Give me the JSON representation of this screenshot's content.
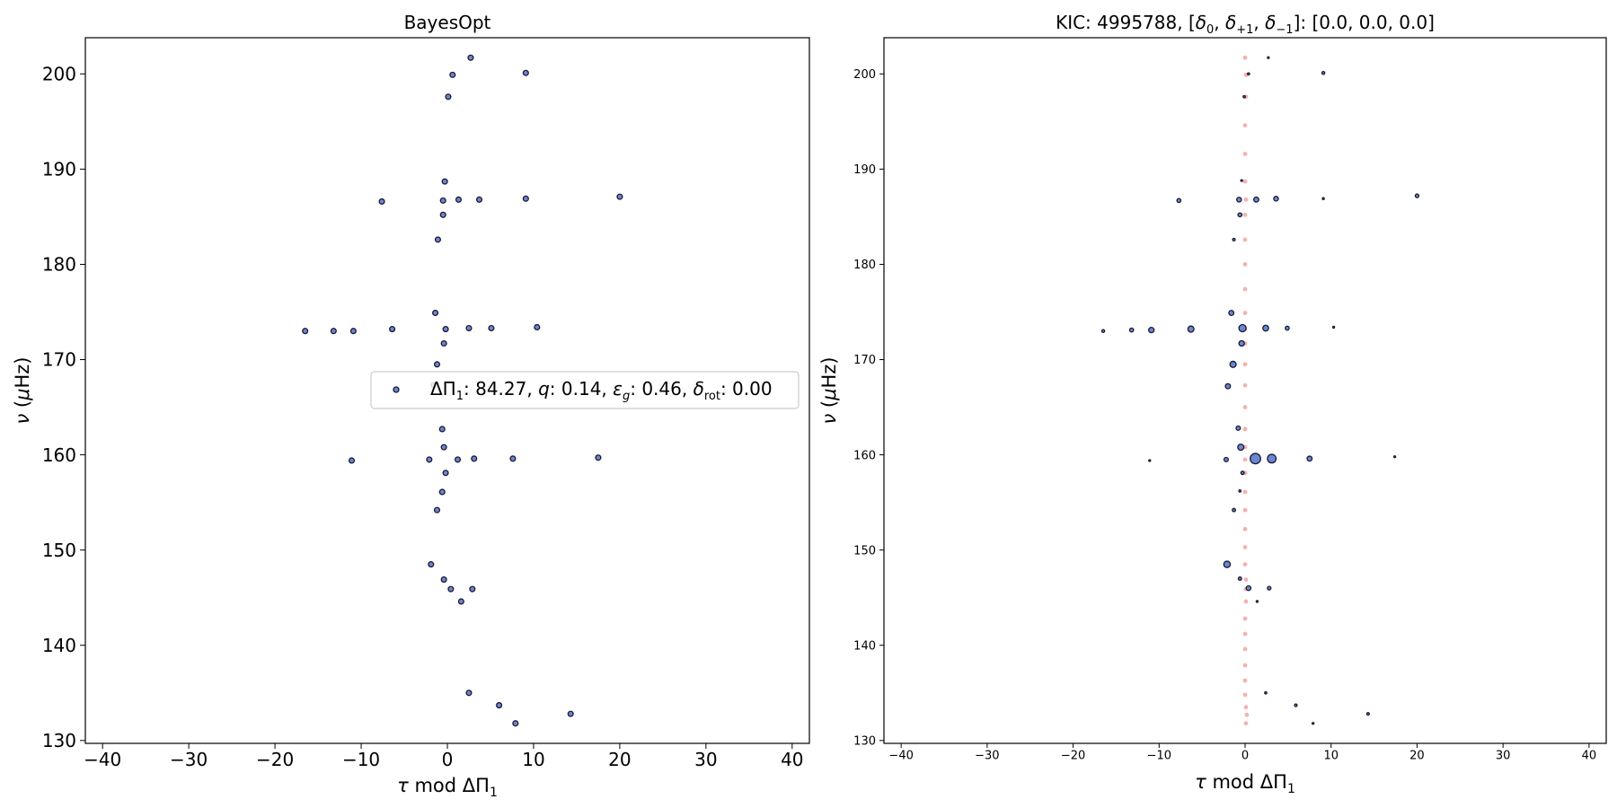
{
  "chart_data": [
    {
      "type": "scatter",
      "title": "BayesOpt",
      "xlabel": "τ mod ΔΠ₁",
      "ylabel": "ν (μHz)",
      "xlim": [
        -42,
        42
      ],
      "ylim": [
        129.7,
        203.8
      ],
      "xticks": [
        -40,
        -30,
        -20,
        -10,
        0,
        10,
        20,
        30,
        40
      ],
      "yticks": [
        130,
        140,
        150,
        160,
        170,
        180,
        190,
        200
      ],
      "grid": false,
      "legend": {
        "placement": "center-right",
        "entries": [
          {
            "label_parts": [
              "ΔΠ",
              "1",
              ": 84.27, ",
              "q",
              ": 0.14, ",
              "ε",
              "g",
              ": 0.46, ",
              "δ",
              "rot",
              ": 0.00"
            ]
          }
        ]
      },
      "colors": {
        "marker_fill": "#6a87d6",
        "marker_edge": "#1a1a2e"
      },
      "series": [
        {
          "points": [
            [
              2.7,
              201.7
            ],
            [
              0.6,
              199.9
            ],
            [
              9.1,
              200.1
            ],
            [
              0.1,
              197.6
            ],
            [
              -0.3,
              188.7
            ],
            [
              -7.6,
              186.6
            ],
            [
              -0.5,
              186.7
            ],
            [
              1.3,
              186.8
            ],
            [
              3.7,
              186.8
            ],
            [
              9.1,
              186.9
            ],
            [
              20.0,
              187.1
            ],
            [
              -0.5,
              185.2
            ],
            [
              -1.1,
              182.6
            ],
            [
              -1.4,
              174.9
            ],
            [
              -16.5,
              173.0
            ],
            [
              -13.2,
              173.0
            ],
            [
              -10.9,
              173.0
            ],
            [
              -6.4,
              173.2
            ],
            [
              -0.2,
              173.2
            ],
            [
              2.5,
              173.3
            ],
            [
              5.1,
              173.3
            ],
            [
              10.4,
              173.4
            ],
            [
              -0.4,
              171.7
            ],
            [
              -1.2,
              169.5
            ],
            [
              -1.6,
              167.3
            ],
            [
              -0.6,
              162.7
            ],
            [
              -0.4,
              160.8
            ],
            [
              -11.1,
              159.4
            ],
            [
              -2.1,
              159.5
            ],
            [
              1.2,
              159.5
            ],
            [
              3.1,
              159.6
            ],
            [
              7.6,
              159.6
            ],
            [
              17.5,
              159.7
            ],
            [
              -0.2,
              158.1
            ],
            [
              -0.6,
              156.1
            ],
            [
              -1.2,
              154.2
            ],
            [
              -1.9,
              148.5
            ],
            [
              -0.4,
              146.9
            ],
            [
              0.4,
              145.9
            ],
            [
              2.9,
              145.9
            ],
            [
              1.6,
              144.6
            ],
            [
              2.5,
              135.0
            ],
            [
              6.0,
              133.7
            ],
            [
              14.3,
              132.8
            ],
            [
              7.9,
              131.8
            ]
          ]
        }
      ]
    },
    {
      "type": "scatter",
      "title_parts": [
        "KIC: 4995788, [",
        "δ",
        "0",
        ", ",
        "δ",
        "+1",
        ", ",
        "δ",
        "−1",
        "]: [0.0, 0.0, 0.0]"
      ],
      "xlabel": "τ mod ΔΠ₁",
      "ylabel": "ν (μHz)",
      "xlim": [
        -42,
        42
      ],
      "ylim": [
        129.7,
        203.8
      ],
      "xticks": [
        -40,
        -30,
        -20,
        -10,
        0,
        10,
        20,
        30,
        40
      ],
      "yticks": [
        130,
        140,
        150,
        160,
        170,
        180,
        190,
        200
      ],
      "grid": false,
      "colors": {
        "observed_fill": "#6a87d6",
        "observed_edge": "#1a1a2e",
        "model_fill": "#f4a3a3"
      },
      "series": [
        {
          "role": "model",
          "points": [
            [
              0.0,
              201.7
            ],
            [
              0.1,
              199.9
            ],
            [
              0.1,
              197.6
            ],
            [
              0.0,
              194.6
            ],
            [
              0.0,
              191.6
            ],
            [
              0.0,
              188.7
            ],
            [
              0.1,
              186.8
            ],
            [
              0.0,
              185.2
            ],
            [
              0.0,
              182.6
            ],
            [
              0.0,
              180.0
            ],
            [
              0.0,
              177.4
            ],
            [
              0.0,
              174.9
            ],
            [
              0.0,
              173.2
            ],
            [
              0.0,
              171.7
            ],
            [
              0.0,
              169.5
            ],
            [
              0.0,
              167.3
            ],
            [
              0.0,
              165.0
            ],
            [
              0.0,
              162.7
            ],
            [
              0.0,
              160.8
            ],
            [
              0.0,
              159.5
            ],
            [
              0.0,
              158.1
            ],
            [
              0.0,
              156.1
            ],
            [
              0.0,
              154.2
            ],
            [
              0.0,
              152.2
            ],
            [
              0.0,
              150.3
            ],
            [
              0.0,
              148.5
            ],
            [
              0.1,
              146.9
            ],
            [
              0.1,
              145.9
            ],
            [
              0.1,
              144.6
            ],
            [
              0.0,
              142.8
            ],
            [
              0.0,
              141.2
            ],
            [
              0.0,
              139.6
            ],
            [
              0.0,
              137.9
            ],
            [
              0.0,
              136.3
            ],
            [
              0.0,
              134.8
            ],
            [
              0.1,
              133.5
            ],
            [
              0.2,
              132.7
            ],
            [
              0.1,
              131.8
            ]
          ]
        },
        {
          "role": "observed",
          "points": [
            [
              2.7,
              201.7,
              1
            ],
            [
              0.4,
              200.0,
              1.2
            ],
            [
              9.1,
              200.1,
              1.6
            ],
            [
              -0.1,
              197.6,
              1.2
            ],
            [
              -0.4,
              188.8,
              1
            ],
            [
              -7.7,
              186.7,
              2.2
            ],
            [
              -0.7,
              186.8,
              2.6
            ],
            [
              1.3,
              186.8,
              2.8
            ],
            [
              3.6,
              186.9,
              2.6
            ],
            [
              9.1,
              186.9,
              1.1
            ],
            [
              20.0,
              187.2,
              2.0
            ],
            [
              -0.6,
              185.2,
              2.2
            ],
            [
              -1.3,
              182.6,
              1.4
            ],
            [
              -1.6,
              174.9,
              2.8
            ],
            [
              -16.5,
              173.0,
              1.6
            ],
            [
              -13.2,
              173.1,
              2.2
            ],
            [
              -10.9,
              173.1,
              3.0
            ],
            [
              -6.3,
              173.2,
              3.4
            ],
            [
              -0.3,
              173.3,
              4.0
            ],
            [
              2.4,
              173.3,
              3.2
            ],
            [
              4.9,
              173.3,
              2.2
            ],
            [
              10.3,
              173.4,
              1.0
            ],
            [
              -0.4,
              171.7,
              3.0
            ],
            [
              -1.4,
              169.5,
              3.4
            ],
            [
              -2.0,
              167.2,
              2.8
            ],
            [
              -0.8,
              162.8,
              2.4
            ],
            [
              -0.5,
              160.8,
              3.4
            ],
            [
              -11.1,
              159.4,
              1.0
            ],
            [
              -2.2,
              159.5,
              2.4
            ],
            [
              1.2,
              159.6,
              5.8
            ],
            [
              3.1,
              159.6,
              4.8
            ],
            [
              7.5,
              159.6,
              2.8
            ],
            [
              17.4,
              159.8,
              1.0
            ],
            [
              -0.3,
              158.1,
              1.8
            ],
            [
              -0.6,
              156.2,
              1.2
            ],
            [
              -1.3,
              154.2,
              1.8
            ],
            [
              -2.1,
              148.5,
              3.6
            ],
            [
              -0.6,
              147.0,
              1.8
            ],
            [
              0.4,
              146.0,
              2.6
            ],
            [
              2.8,
              146.0,
              2.0
            ],
            [
              1.4,
              144.6,
              1.0
            ],
            [
              2.4,
              135.0,
              1.2
            ],
            [
              5.9,
              133.7,
              1.4
            ],
            [
              14.3,
              132.8,
              1.4
            ],
            [
              7.9,
              131.8,
              1.0
            ]
          ]
        }
      ]
    }
  ]
}
